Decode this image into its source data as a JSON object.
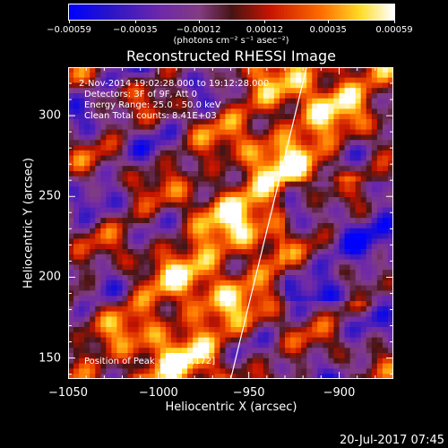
{
  "chart_data": {
    "type": "heatmap",
    "title": "Reconstructed RHESSI Image",
    "xlabel": "Heliocentric X (arcsec)",
    "ylabel": "Heliocentric Y (arcsec)",
    "xlim": [
      -1050,
      -870
    ],
    "ylim": [
      137,
      330
    ],
    "xticks": [
      -1050,
      -1000,
      -950,
      -900
    ],
    "xtick_labels": [
      "−1050",
      "−1000",
      "−950",
      "−900"
    ],
    "yticks": [
      150,
      200,
      250,
      300
    ],
    "ytick_labels": [
      "150",
      "200",
      "250",
      "300"
    ],
    "colorbar": {
      "min": -0.00059,
      "max": 0.00059,
      "tick_values": [
        -0.00059,
        -0.00035,
        -0.00012,
        0.00012,
        0.00035,
        0.00059
      ],
      "tick_labels": [
        "−0.00059",
        "−0.00035",
        "−0.00012",
        "0.00012",
        "0.00035",
        "0.00059"
      ],
      "units": "(photons cm⁻² s⁻¹ asec⁻²)"
    },
    "annotations": [
      "2-Nov-2014 19:02:28.000 to 19:12:28.000",
      "Detectors: 3F of 9F, Att 0",
      "Energy Range: 25.0 - 50.0 keV",
      "Clean     Total counts: 8.41E+03"
    ],
    "peak_label": "Position of Peak = [-983,172]",
    "peak": [
      -983,
      172
    ],
    "limb_line": [
      [
        -960,
        137
      ],
      [
        -918,
        330
      ]
    ],
    "grid": false,
    "legend": "none"
  },
  "footer": {
    "timestamp": "20-Jul-2017 07:45"
  },
  "colors": {
    "background": "#000000",
    "axes": "#ffffff",
    "colormap": "blue-purple-red-yellow-white"
  }
}
